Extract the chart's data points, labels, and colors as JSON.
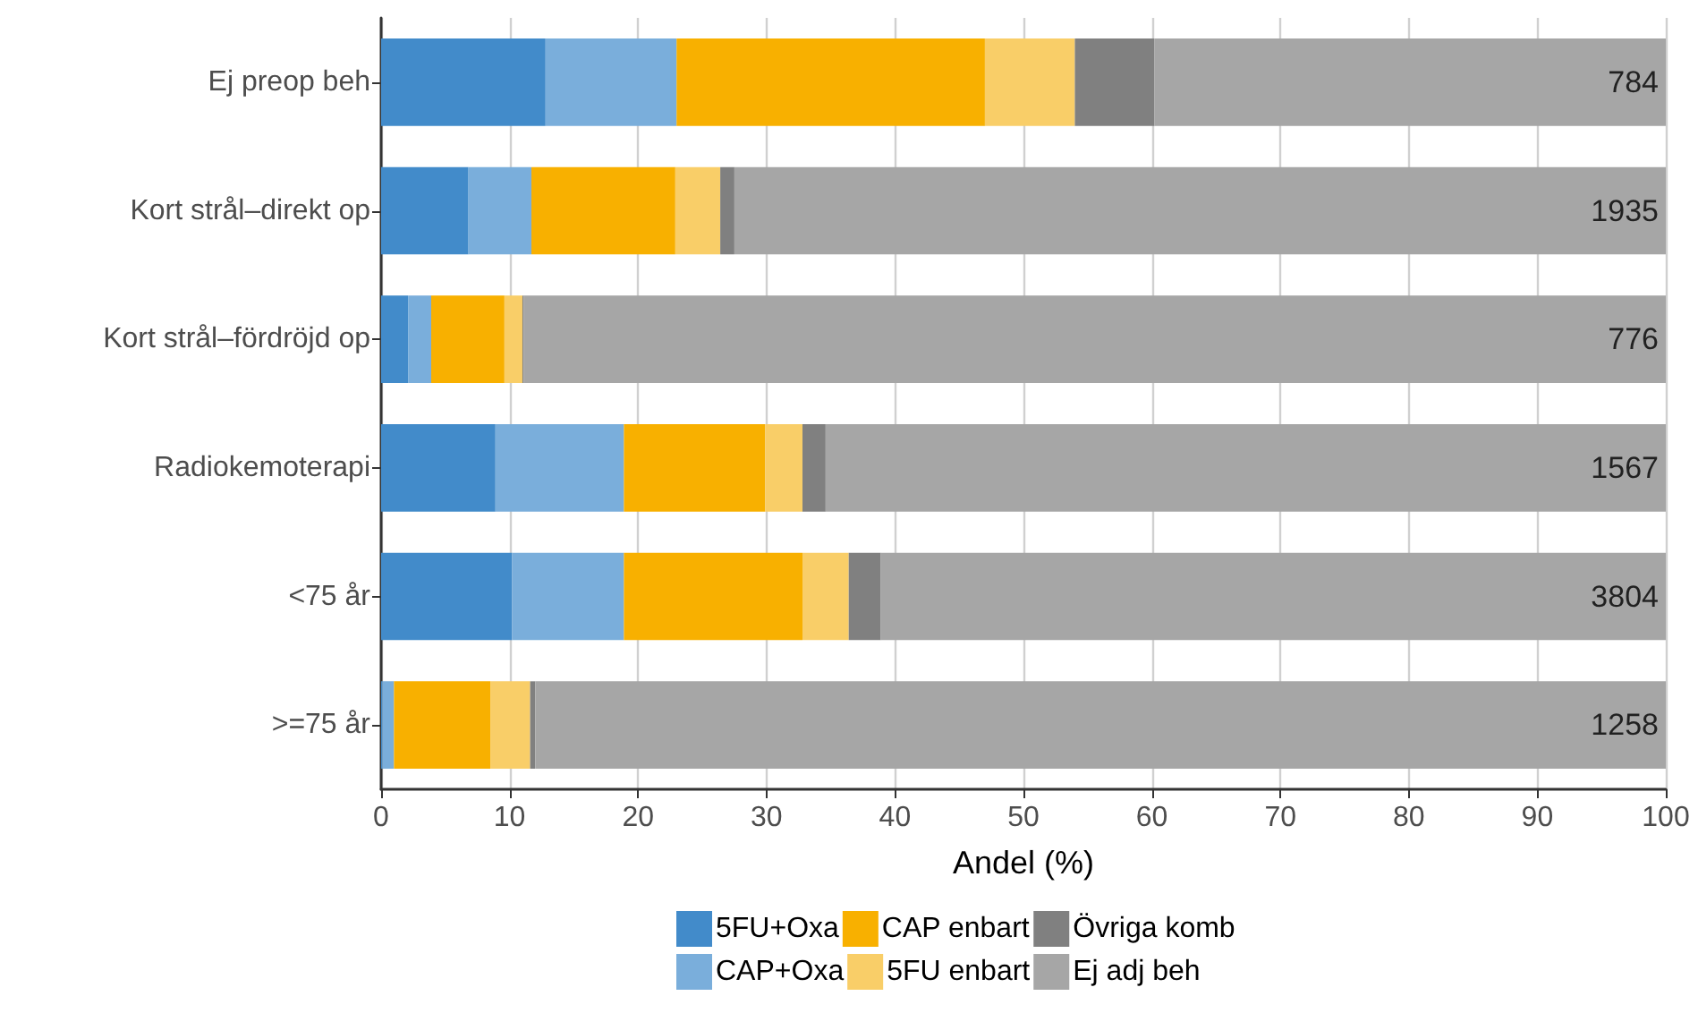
{
  "chart_data": {
    "type": "bar",
    "orientation": "horizontal",
    "stacked": true,
    "xlabel": "Andel (%)",
    "categories": [
      "Ej preop beh",
      "Kort strål–direkt op",
      "Kort strål–fördröjd op",
      "Radiokemoterapi",
      "<75 år",
      ">=75 år"
    ],
    "series": [
      {
        "name": "5FU+Oxa",
        "color": "#428bca",
        "values": [
          12.8,
          6.8,
          2.1,
          8.9,
          10.2,
          0.1
        ]
      },
      {
        "name": "CAP+Oxa",
        "color": "#7aaedb",
        "values": [
          10.2,
          4.9,
          1.8,
          10.0,
          8.7,
          0.9
        ]
      },
      {
        "name": "CAP enbart",
        "color": "#f8b000",
        "values": [
          24.0,
          11.2,
          5.7,
          11.0,
          13.9,
          7.5
        ]
      },
      {
        "name": "5FU enbart",
        "color": "#f9ce68",
        "values": [
          7.0,
          3.5,
          1.4,
          2.9,
          3.6,
          3.1
        ]
      },
      {
        "name": "Övriga komb",
        "color": "#808080",
        "values": [
          6.2,
          1.1,
          0.1,
          1.8,
          2.5,
          0.4
        ]
      },
      {
        "name": "Ej adj beh",
        "color": "#a6a6a6",
        "values": [
          39.8,
          72.5,
          88.9,
          65.4,
          61.1,
          88.0
        ]
      }
    ],
    "xlim": [
      0,
      100
    ],
    "xticks": [
      0,
      10,
      20,
      30,
      40,
      50,
      60,
      70,
      80,
      90,
      100
    ],
    "grid": "x",
    "legend": "bottom",
    "annotations": [
      "784",
      "1935",
      "776",
      "1567",
      "3804",
      "1258"
    ]
  }
}
